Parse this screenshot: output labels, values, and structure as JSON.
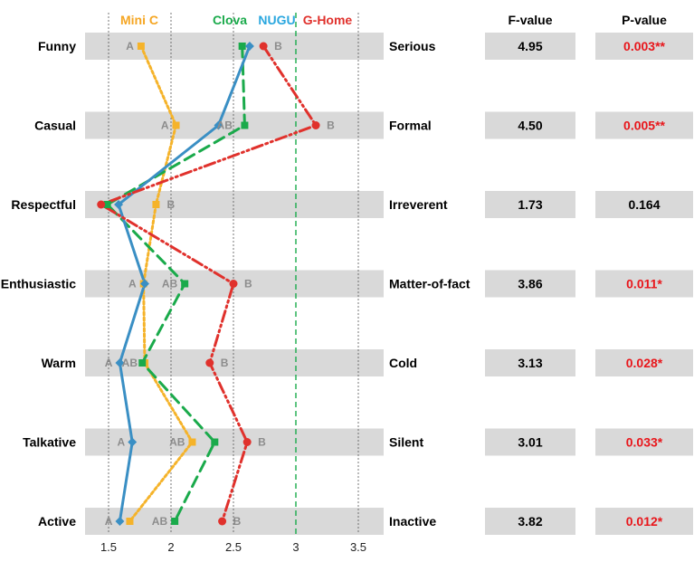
{
  "chart_data": {
    "type": "line",
    "orientation": "vertical-profile",
    "xlim": [
      1.3,
      3.7
    ],
    "xticks": [
      1.5,
      2,
      2.5,
      3,
      3.5
    ],
    "xtick_labels": [
      "1.5",
      "2",
      "2.5",
      "3",
      "3.5"
    ],
    "reference_line": 3,
    "grid": "vertical dotted",
    "legend_position": "top",
    "categories_left": [
      "Funny",
      "Casual",
      "Respectful",
      "Enthusiastic",
      "Warm",
      "Talkative",
      "Active"
    ],
    "categories_right": [
      "Serious",
      "Formal",
      "Irreverent",
      "Matter-of-fact",
      "Cold",
      "Silent",
      "Inactive"
    ],
    "series": [
      {
        "name": "Mini C",
        "color": "#f5b32a",
        "dash": "3,3",
        "marker": "square",
        "values": [
          1.76,
          2.04,
          1.88,
          1.78,
          1.79,
          2.17,
          1.67
        ]
      },
      {
        "name": "Clova",
        "color": "#1aaa4b",
        "dash": "12,7",
        "marker": "square",
        "values": [
          2.57,
          2.59,
          1.49,
          2.11,
          1.77,
          2.35,
          2.03
        ]
      },
      {
        "name": "NUGU",
        "color": "#3a8fc4",
        "dash": "",
        "marker": "diamond",
        "values": [
          2.63,
          2.38,
          1.58,
          1.79,
          1.59,
          1.69,
          1.59
        ]
      },
      {
        "name": "G-Home",
        "color": "#e0312c",
        "dash": "12,4,2,4,2,4",
        "marker": "circle",
        "values": [
          2.74,
          3.16,
          1.44,
          2.5,
          2.31,
          2.61,
          2.41
        ]
      }
    ],
    "legend_colors": {
      "Mini C": "#f5a623",
      "Clova": "#1aaa4b",
      "NUGU": "#2aa7df",
      "G-Home": "#e0312c"
    },
    "letter_annotations": [
      {
        "row": 0,
        "x": 1.76,
        "text": "A"
      },
      {
        "row": 0,
        "x": 2.74,
        "text": "B"
      },
      {
        "row": 1,
        "x": 2.04,
        "text": "A"
      },
      {
        "row": 1,
        "x": 2.55,
        "text": "AB"
      },
      {
        "row": 1,
        "x": 3.16,
        "text": "B"
      },
      {
        "row": 2,
        "x": 1.88,
        "text": "B"
      },
      {
        "row": 3,
        "x": 1.78,
        "text": "A"
      },
      {
        "row": 3,
        "x": 2.11,
        "text": "AB"
      },
      {
        "row": 3,
        "x": 2.5,
        "text": "B"
      },
      {
        "row": 4,
        "x": 1.59,
        "text": "A"
      },
      {
        "row": 4,
        "x": 1.79,
        "text": "AB"
      },
      {
        "row": 4,
        "x": 2.31,
        "text": "B"
      },
      {
        "row": 5,
        "x": 1.69,
        "text": "A"
      },
      {
        "row": 5,
        "x": 2.17,
        "text": "AB"
      },
      {
        "row": 5,
        "x": 2.61,
        "text": "B"
      },
      {
        "row": 6,
        "x": 1.59,
        "text": "A"
      },
      {
        "row": 6,
        "x": 2.03,
        "text": "AB"
      },
      {
        "row": 6,
        "x": 2.41,
        "text": "B"
      }
    ],
    "table": {
      "f_header": "F-value",
      "p_header": "P-value",
      "f_values": [
        "4.95",
        "4.50",
        "1.73",
        "3.86",
        "3.13",
        "3.01",
        "3.82"
      ],
      "p_values": [
        "0.003**",
        "0.005**",
        "0.164",
        "0.011*",
        "0.028*",
        "0.033*",
        "0.012*"
      ],
      "p_significant": [
        true,
        true,
        false,
        true,
        true,
        true,
        true
      ]
    },
    "colors": {
      "band": "#d9d9d9",
      "significant": "#e8161b",
      "text": "#000000",
      "annotation": "#8c8c8c"
    }
  }
}
